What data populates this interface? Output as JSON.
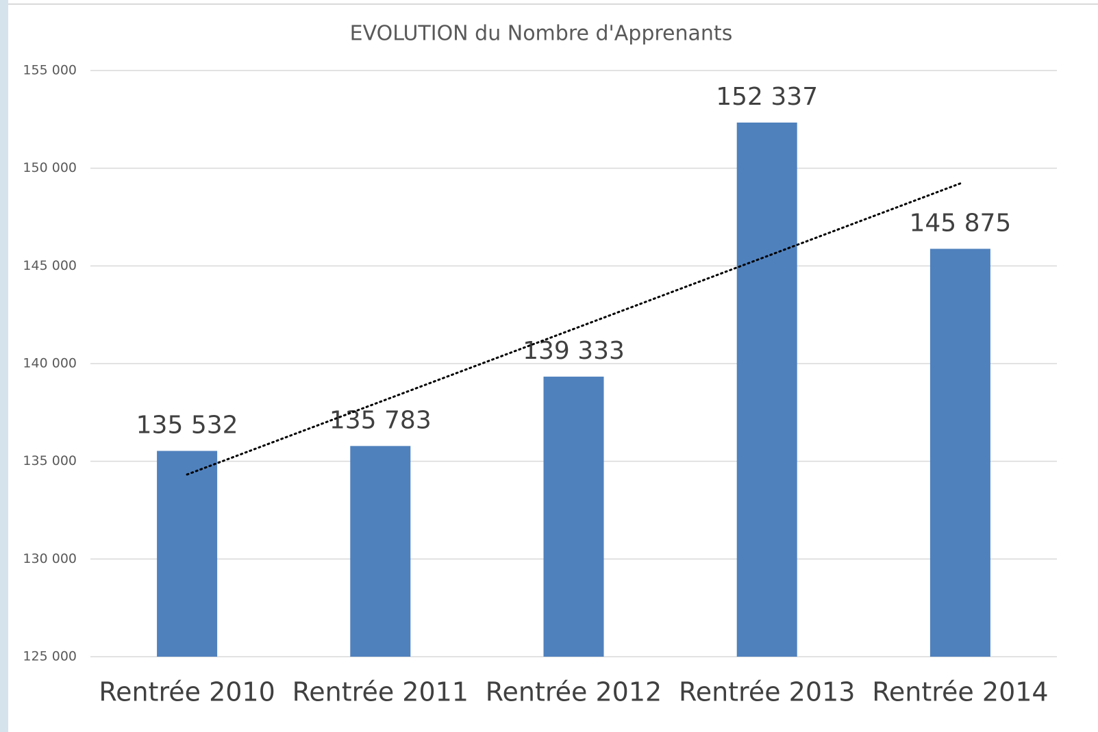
{
  "chart_data": {
    "type": "bar",
    "title": "EVOLUTION du Nombre d'Apprenants",
    "categories": [
      "Rentrée 2010",
      "Rentrée 2011",
      "Rentrée 2012",
      "Rentrée 2013",
      "Rentrée 2014"
    ],
    "values": [
      135532,
      135783,
      139333,
      152337,
      145875
    ],
    "value_labels": [
      "135 532",
      "135 783",
      "139 333",
      "152 337",
      "145 875"
    ],
    "color": "#4f81bd",
    "ylim": [
      125000,
      155000
    ],
    "yticks": [
      {
        "value": 125000,
        "label": "125 000"
      },
      {
        "value": 130000,
        "label": "130 000"
      },
      {
        "value": 135000,
        "label": "135 000"
      },
      {
        "value": 140000,
        "label": "140 000"
      },
      {
        "value": 145000,
        "label": "145 000"
      },
      {
        "value": 150000,
        "label": "150 000"
      },
      {
        "value": 155000,
        "label": "155 000"
      }
    ],
    "grid": true,
    "trendline": "linear"
  }
}
